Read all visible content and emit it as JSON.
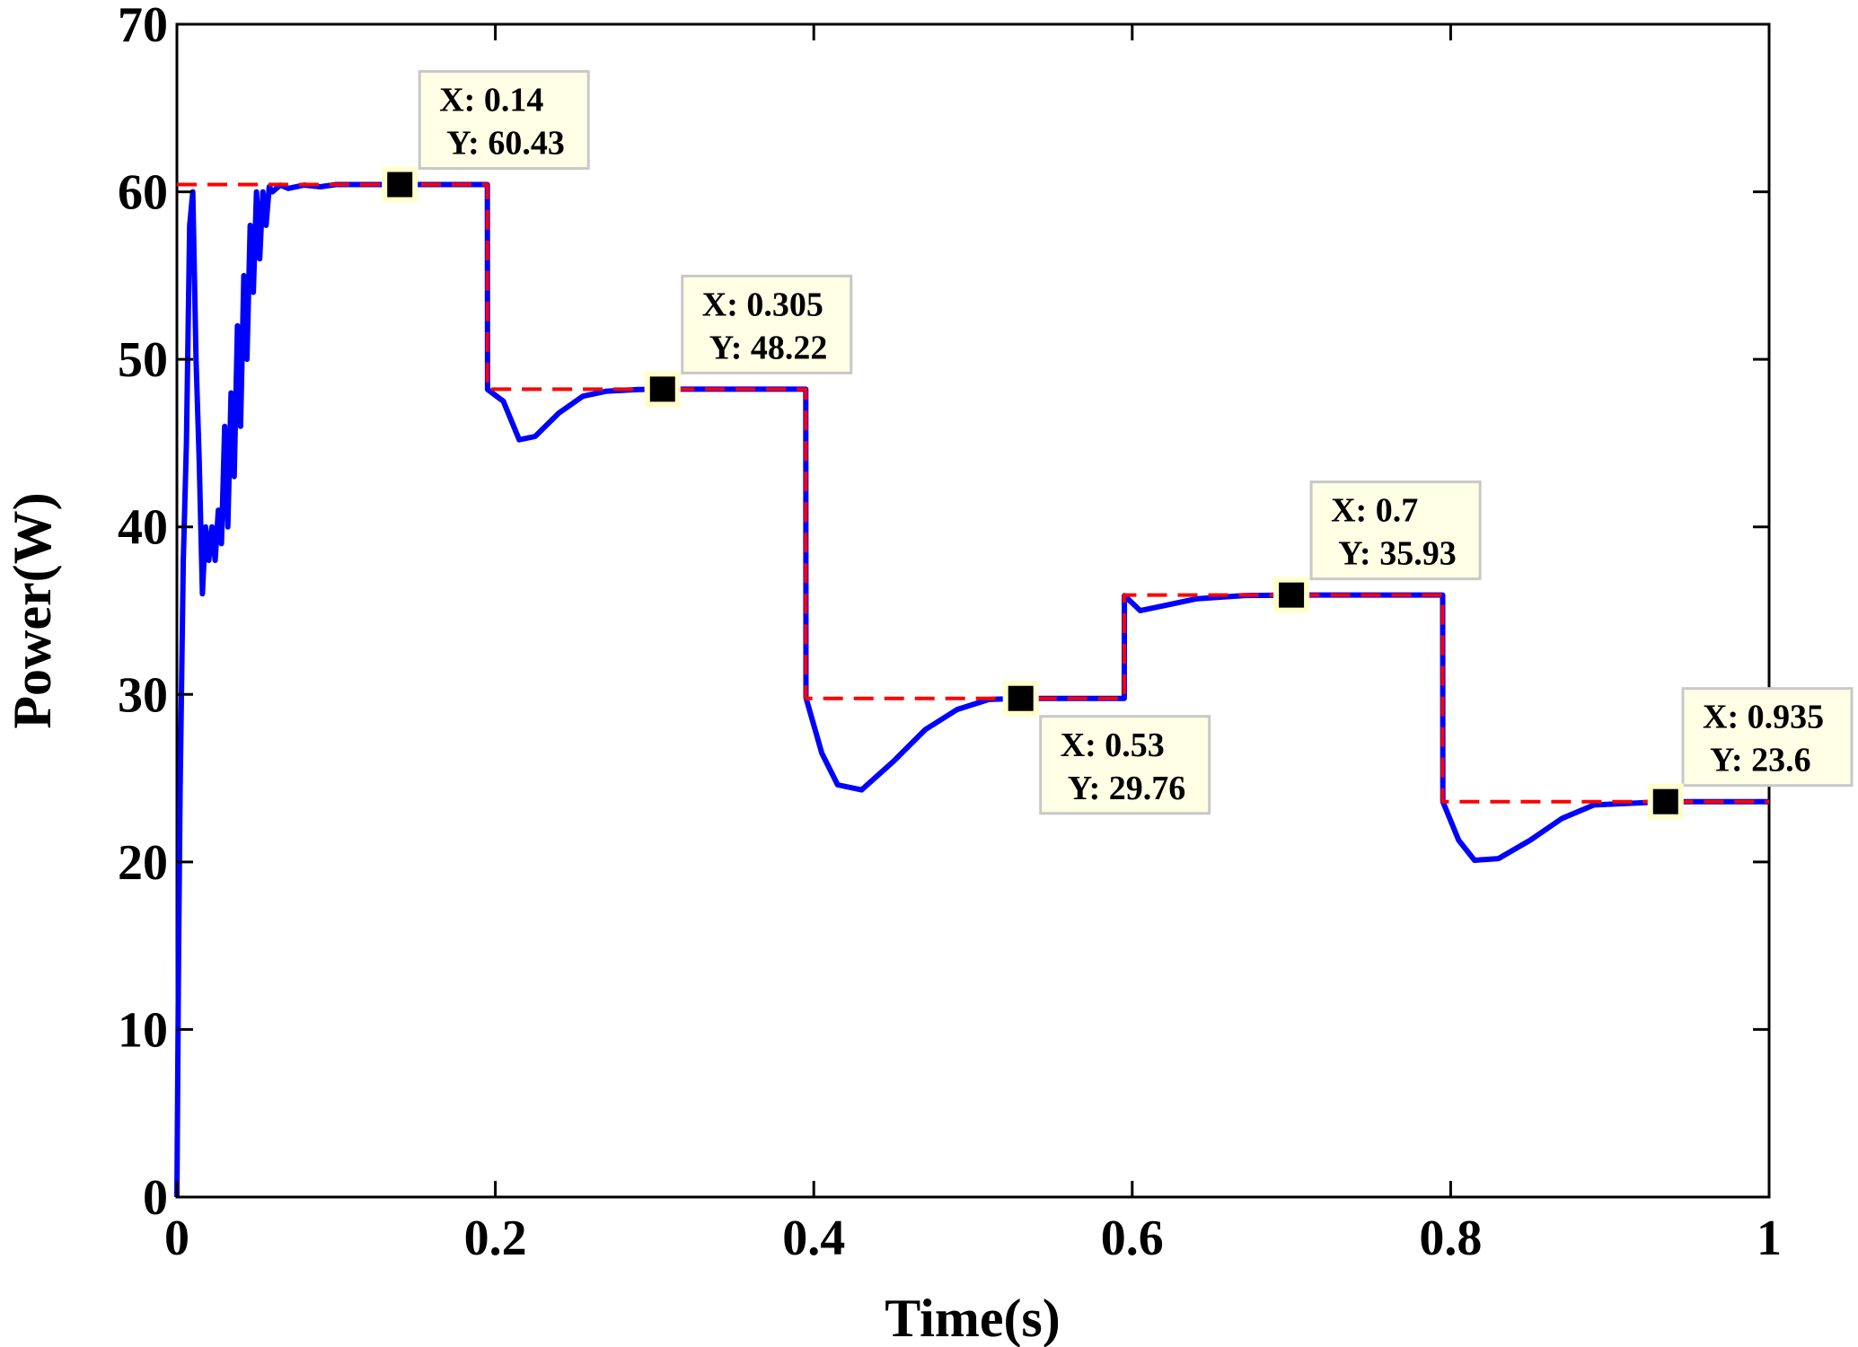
{
  "chart_data": {
    "type": "line",
    "title": "",
    "xlabel": "Time(s)",
    "ylabel": "Power(W)",
    "xlim": [
      0,
      1
    ],
    "ylim": [
      0,
      70
    ],
    "x_ticks": [
      0,
      0.2,
      0.4,
      0.6,
      0.8,
      1
    ],
    "x_tick_labels": [
      "0",
      "0.2",
      "0.4",
      "0.6",
      "0.8",
      "1"
    ],
    "y_ticks": [
      0,
      10,
      20,
      30,
      40,
      50,
      60,
      70
    ],
    "y_tick_labels": [
      "0",
      "10",
      "20",
      "30",
      "40",
      "50",
      "60",
      "70"
    ],
    "grid": false,
    "legend": "none",
    "series": [
      {
        "color": "#0000ff",
        "style": "solid",
        "x": [
          0,
          0.001,
          0.002,
          0.004,
          0.006,
          0.008,
          0.01,
          0.012,
          0.014,
          0.016,
          0.018,
          0.02,
          0.022,
          0.024,
          0.026,
          0.028,
          0.03,
          0.032,
          0.034,
          0.036,
          0.038,
          0.04,
          0.042,
          0.044,
          0.046,
          0.048,
          0.05,
          0.052,
          0.054,
          0.056,
          0.058,
          0.06,
          0.065,
          0.07,
          0.08,
          0.09,
          0.1,
          0.12,
          0.14,
          0.195,
          0.1951,
          0.205,
          0.215,
          0.225,
          0.24,
          0.255,
          0.27,
          0.29,
          0.305,
          0.395,
          0.3951,
          0.405,
          0.415,
          0.43,
          0.45,
          0.47,
          0.49,
          0.51,
          0.53,
          0.595,
          0.5951,
          0.605,
          0.62,
          0.64,
          0.67,
          0.7,
          0.795,
          0.7951,
          0.805,
          0.815,
          0.83,
          0.85,
          0.87,
          0.89,
          0.935,
          1.0
        ],
        "y": [
          0,
          14,
          24,
          38,
          45,
          58,
          60,
          50,
          44,
          36,
          40,
          38,
          40,
          38,
          41,
          39,
          46,
          40,
          48,
          43,
          52,
          46,
          55,
          50,
          58,
          54,
          60,
          56,
          60,
          58,
          60.3,
          60,
          60.4,
          60.2,
          60.4,
          60.3,
          60.43,
          60.43,
          60.43,
          60.43,
          48.2,
          47.5,
          45.2,
          45.4,
          46.8,
          47.8,
          48.1,
          48.2,
          48.22,
          48.22,
          29.8,
          26.5,
          24.6,
          24.3,
          26.0,
          27.9,
          29.1,
          29.7,
          29.76,
          29.76,
          35.9,
          35.0,
          35.3,
          35.7,
          35.9,
          35.93,
          35.93,
          23.6,
          21.3,
          20.1,
          20.2,
          21.3,
          22.6,
          23.4,
          23.6,
          23.6
        ]
      },
      {
        "color": "#ff0000",
        "style": "dashed",
        "x": [
          0,
          0.195,
          0.195,
          0.395,
          0.395,
          0.595,
          0.595,
          0.795,
          0.795,
          1.0
        ],
        "y": [
          60.43,
          60.43,
          48.22,
          48.22,
          29.76,
          29.76,
          35.93,
          35.93,
          23.6,
          23.6
        ]
      }
    ],
    "annotations": [
      {
        "x": 0.14,
        "y": 60.43,
        "line1": "X: 0.14",
        "line2": "Y: 60.43",
        "placement": "above-right"
      },
      {
        "x": 0.305,
        "y": 48.22,
        "line1": "X: 0.305",
        "line2": "Y: 48.22",
        "placement": "above-right"
      },
      {
        "x": 0.53,
        "y": 29.76,
        "line1": "X: 0.53",
        "line2": "Y: 29.76",
        "placement": "below-right"
      },
      {
        "x": 0.7,
        "y": 35.93,
        "line1": "X: 0.7",
        "line2": "Y: 35.93",
        "placement": "above-right"
      },
      {
        "x": 0.935,
        "y": 23.6,
        "line1": "X: 0.935",
        "line2": "Y: 23.6",
        "placement": "above-right"
      }
    ]
  }
}
